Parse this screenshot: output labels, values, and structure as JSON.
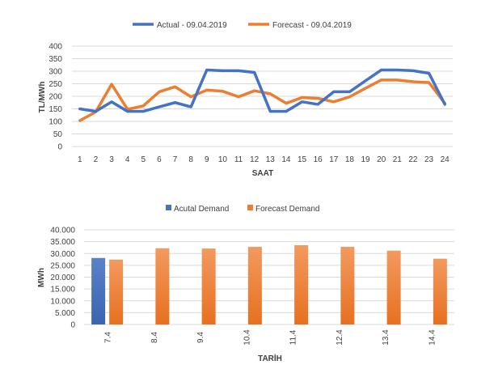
{
  "chart_data": [
    {
      "type": "line",
      "title": "",
      "xlabel": "SAAT",
      "ylabel": "TL/MWh",
      "ylim": [
        0,
        400
      ],
      "yticks": [
        0,
        50,
        100,
        150,
        200,
        250,
        300,
        350,
        400
      ],
      "categories": [
        "1",
        "2",
        "3",
        "4",
        "5",
        "6",
        "7",
        "8",
        "9",
        "10",
        "11",
        "12",
        "13",
        "14",
        "15",
        "16",
        "17",
        "18",
        "19",
        "20",
        "21",
        "22",
        "23",
        "24"
      ],
      "grid": true,
      "legend": "top-center",
      "series": [
        {
          "name": "Actual - 09.04.2019",
          "color": "#4472C4",
          "values": [
            150,
            140,
            178,
            140,
            140,
            158,
            175,
            158,
            305,
            302,
            302,
            295,
            140,
            140,
            178,
            168,
            218,
            218,
            262,
            305,
            305,
            302,
            292,
            168
          ]
        },
        {
          "name": "Forecast - 09.04.2019",
          "color": "#ED7D31",
          "values": [
            103,
            138,
            248,
            148,
            162,
            218,
            238,
            198,
            225,
            220,
            198,
            222,
            210,
            172,
            195,
            192,
            178,
            198,
            232,
            265,
            265,
            258,
            255,
            172
          ]
        }
      ]
    },
    {
      "type": "bar",
      "title": "",
      "xlabel": "TARİH",
      "ylabel": "MWh",
      "ylim": [
        0,
        40000
      ],
      "yticks": [
        "0",
        "5.000",
        "10.000",
        "15.000",
        "20.000",
        "25.000",
        "30.000",
        "35.000",
        "40.000"
      ],
      "categories": [
        "7.4",
        "8.4",
        "9.4",
        "10.4",
        "11.4",
        "12.4",
        "13.4",
        "14.4"
      ],
      "grid": true,
      "legend": "top-center",
      "series": [
        {
          "name": "Acutal Demand",
          "color": "#4472C4",
          "values": [
            28100,
            null,
            null,
            null,
            null,
            null,
            null,
            null
          ]
        },
        {
          "name": "Forecast Demand",
          "color": "#ED7D31",
          "values": [
            27400,
            32200,
            32100,
            32800,
            33500,
            32800,
            31200,
            27800
          ]
        }
      ]
    }
  ]
}
